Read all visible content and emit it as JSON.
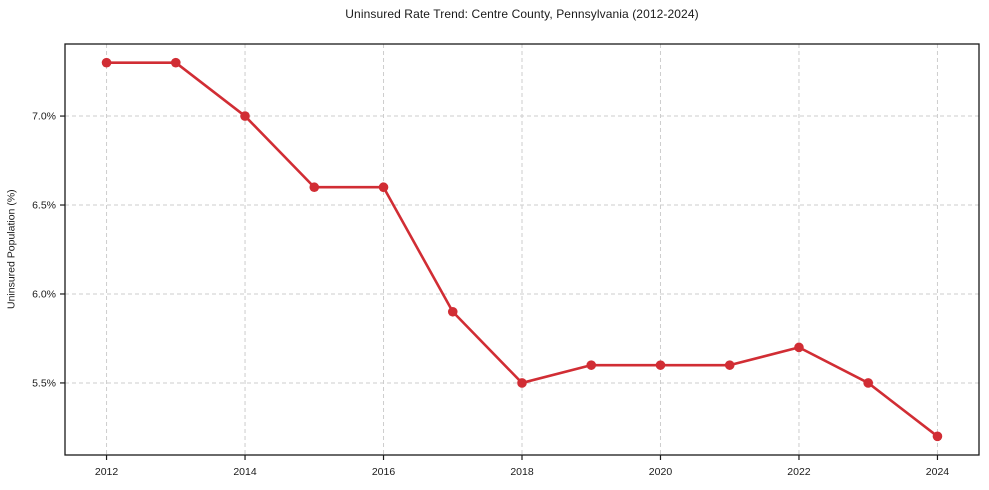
{
  "chart_data": {
    "type": "line",
    "title": "Uninsured Rate Trend: Centre County, Pennsylvania (2012-2024)",
    "xlabel": "",
    "ylabel": "Uninsured Population (%)",
    "x": [
      2012,
      2013,
      2014,
      2015,
      2016,
      2017,
      2018,
      2019,
      2020,
      2021,
      2022,
      2023,
      2024
    ],
    "values": [
      7.3,
      7.3,
      7.0,
      6.6,
      6.6,
      5.9,
      5.5,
      5.6,
      5.6,
      5.6,
      5.7,
      5.5,
      5.2
    ],
    "xticks": [
      2012,
      2014,
      2016,
      2018,
      2020,
      2022,
      2024
    ],
    "xtick_labels": [
      "2012",
      "2014",
      "2016",
      "2018",
      "2020",
      "2022",
      "2024"
    ],
    "yticks": [
      5.5,
      6.0,
      6.5,
      7.0
    ],
    "ytick_labels": [
      "5.5%",
      "6.0%",
      "6.5%",
      "7.0%"
    ],
    "xlim": [
      2011.4,
      2024.6
    ],
    "ylim": [
      5.095,
      7.405
    ],
    "grid": true,
    "grid_style": "dashed",
    "legend": "none",
    "line_color": "#d12d34",
    "marker": "circle",
    "grid_color": "#cdcdcd",
    "axis_color": "#1a1a1a",
    "text_color": "#1a1a1a",
    "background_color": "#ffffff"
  }
}
